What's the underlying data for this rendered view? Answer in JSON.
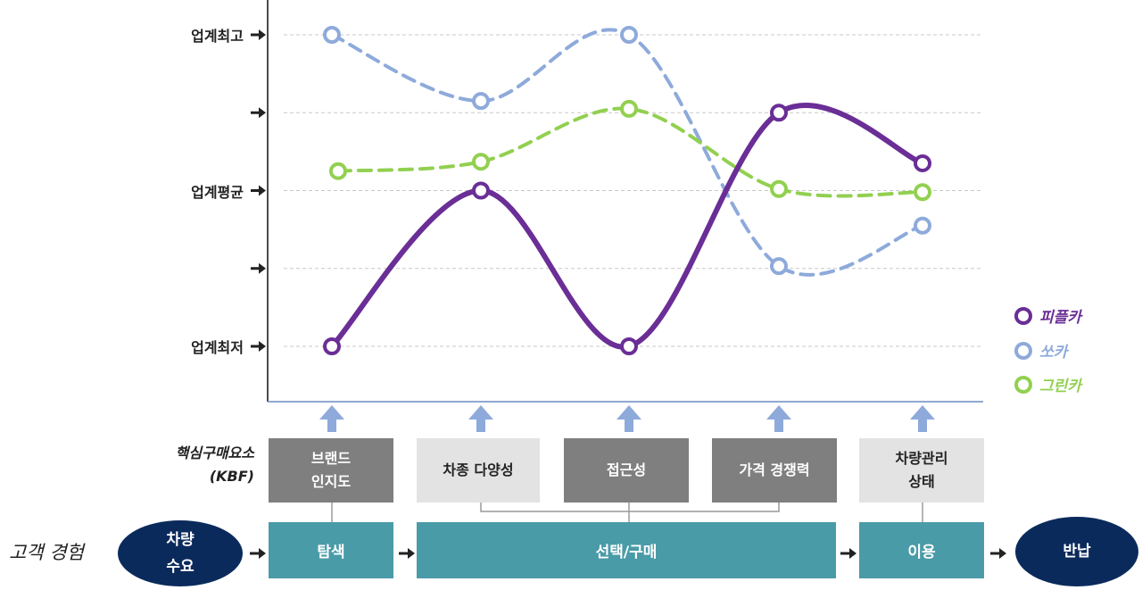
{
  "chart_data": {
    "type": "line",
    "categories": [
      "탐색",
      "차종 다양성",
      "접근성",
      "가격 경쟁력",
      "차량관리 상태"
    ],
    "y_tick_labels": [
      "업계최저",
      "",
      "업계평균",
      "",
      "업계최고"
    ],
    "ylim": [
      0,
      4
    ],
    "grid": true,
    "legend_position": "right",
    "series": [
      {
        "name": "피플카",
        "color": "#6a2e96",
        "style": "solid",
        "values": [
          0,
          2,
          0,
          3,
          2.35
        ]
      },
      {
        "name": "쏘카",
        "color": "#8eaadb",
        "style": "dashed",
        "values": [
          4,
          3.15,
          4,
          1.03,
          1.55
        ]
      },
      {
        "name": "그린카",
        "color": "#92d050",
        "style": "dashed",
        "values": [
          2.25,
          2.37,
          3.05,
          2.02,
          1.98
        ]
      }
    ]
  },
  "kbf": {
    "label_line1": "핵심구매요소",
    "label_line2": "(KBF)",
    "boxes": [
      {
        "line1": "브랜드",
        "line2": "인지도",
        "tone": "dark"
      },
      {
        "line1": "차종 다양성",
        "line2": "",
        "tone": "light"
      },
      {
        "line1": "접근성",
        "line2": "",
        "tone": "dark"
      },
      {
        "line1": "가격 경쟁력",
        "line2": "",
        "tone": "dark"
      },
      {
        "line1": "차량관리",
        "line2": "상태",
        "tone": "light"
      }
    ]
  },
  "journey": {
    "label": "고객 경험",
    "start": {
      "line1": "차량",
      "line2": "수요"
    },
    "stages": [
      "탐색",
      "선택/구매",
      "이용"
    ],
    "end": "반납"
  }
}
